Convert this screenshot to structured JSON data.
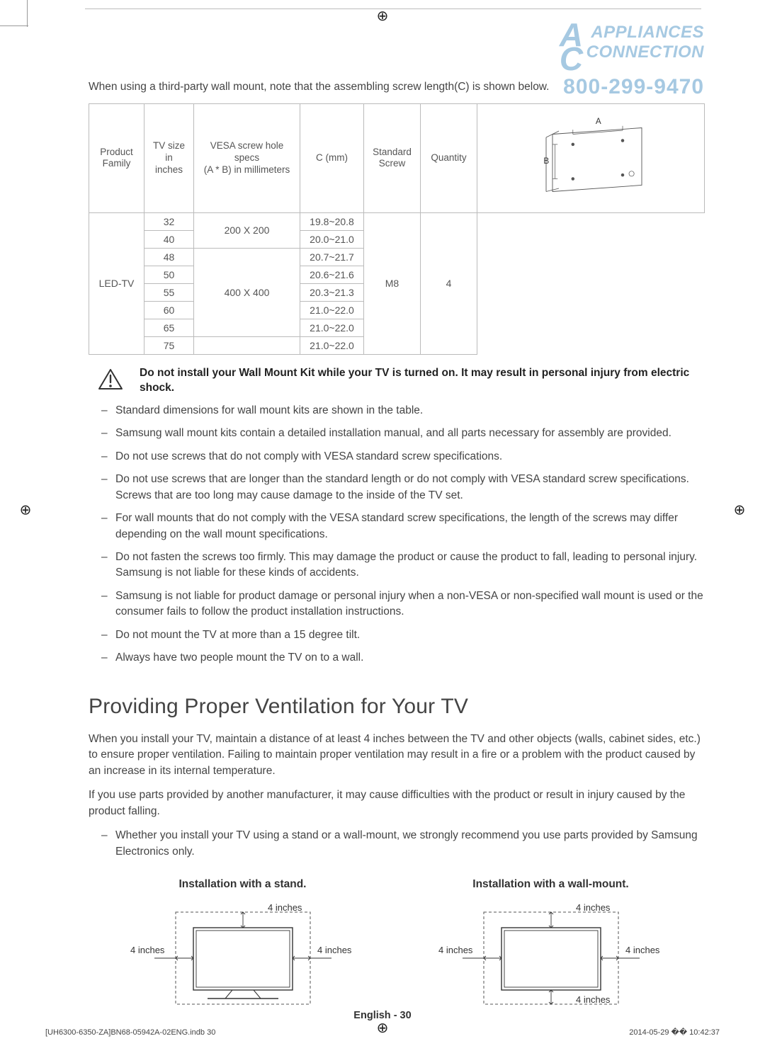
{
  "watermark": {
    "line1": "APPLIANCES",
    "line2": "CONNECTION",
    "phone": "800-299-9470"
  },
  "intro": "When using a third-party wall mount, note that the assembling screw length(C) is shown below.",
  "table": {
    "headers": [
      "Product\nFamily",
      "TV size in\ninches",
      "VESA screw hole specs\n(A * B) in millimeters",
      "C (mm)",
      "Standard\nScrew",
      "Quantity"
    ],
    "product_family": "LED-TV",
    "standard_screw": "M8",
    "quantity": "4",
    "diagram_labels": {
      "A": "A",
      "B": "B"
    },
    "rows": [
      {
        "size": "32",
        "vesa": "200 X 200",
        "c": "19.8~20.8"
      },
      {
        "size": "40",
        "vesa": "200 X 200",
        "c": "20.0~21.0"
      },
      {
        "size": "48",
        "vesa": "400 X 400",
        "c": "20.7~21.7"
      },
      {
        "size": "50",
        "vesa": "400 X 400",
        "c": "20.6~21.6"
      },
      {
        "size": "55",
        "vesa": "400 X 400",
        "c": "20.3~21.3"
      },
      {
        "size": "60",
        "vesa": "400 X 400",
        "c": "21.0~22.0"
      },
      {
        "size": "65",
        "vesa": "400 X 400",
        "c": "21.0~22.0"
      },
      {
        "size": "75",
        "vesa": "",
        "c": "21.0~22.0"
      }
    ]
  },
  "warning": "Do not install your Wall Mount Kit while your TV is turned on. It may result in personal injury from electric shock.",
  "bullets_a": [
    "Standard dimensions for wall mount kits are shown in the table.",
    "Samsung wall mount kits contain a detailed installation manual, and all parts necessary for assembly are provided.",
    "Do not use screws that do not comply with VESA standard screw specifications.",
    "Do not use screws that are longer than the standard length or do not comply with VESA standard screw specifications. Screws that are too long may cause damage to the inside of the TV set.",
    "For wall mounts that do not comply with the VESA standard screw specifications, the length of the screws may differ depending on the wall mount specifications.",
    "Do not fasten the screws too firmly. This may damage the product or cause the product to fall, leading to personal injury. Samsung is not liable for these kinds of accidents.",
    "Samsung is not liable for product damage or personal injury when a non-VESA or non-specified wall mount is used or the consumer fails to follow the product installation instructions.",
    "Do not mount the TV at more than a 15 degree tilt.",
    "Always have two people mount the TV on to a wall."
  ],
  "section_title": "Providing Proper Ventilation for Your TV",
  "para1": "When you install your TV, maintain a distance of at least 4 inches between the TV and other objects (walls, cabinet sides, etc.) to ensure proper ventilation. Failing to maintain proper ventilation may result in a fire or a problem with the product caused by an increase in its internal temperature.",
  "para2": "If you use parts provided by another manufacturer, it may cause difficulties with the product or result in injury caused by the product falling.",
  "bullets_b": [
    "Whether you install your TV using a stand or a wall-mount, we strongly recommend you use parts provided by Samsung Electronics only."
  ],
  "install": {
    "stand_caption": "Installation with a stand.",
    "wall_caption": "Installation with a wall-mount.",
    "label": "4 inches"
  },
  "pagenum_prefix": "English - ",
  "pagenum": "30",
  "footer_left": "[UH6300-6350-ZA]BN68-05942A-02ENG.indb   30",
  "footer_right": "2014-05-29   �� 10:42:37",
  "colors": {
    "text": "#444444",
    "border": "#bbbbbb",
    "watermark": "#a6c9e2"
  }
}
